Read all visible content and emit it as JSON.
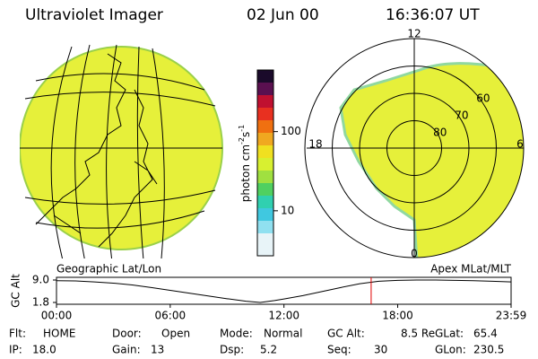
{
  "header": {
    "title": "Ultraviolet Imager",
    "date": "02 Jun 00",
    "time": "16:36:07 UT"
  },
  "colorbar": {
    "label": "photon cm",
    "exp1": "-2",
    "unit2": "s",
    "exp2": "-1",
    "scale": "log",
    "lim": [
      2.7,
      600
    ],
    "ticks": [
      10,
      100
    ]
  },
  "polar": {
    "mlt_labels": [
      "12",
      "18",
      "6",
      "0"
    ],
    "lat_lim": [
      50,
      90
    ],
    "lat_rings": [
      60,
      70,
      80
    ]
  },
  "map_titles": {
    "left": "Geographic Lat/Lon",
    "right": "Apex MLat/MLT"
  },
  "orbit_plot": {
    "ylabel": "GC Alt",
    "ylim": [
      1.8,
      9.0
    ],
    "yticks": [
      {
        "value": 9,
        "label": "9.0"
      },
      1.8
    ],
    "xlim": [
      0,
      23.983
    ],
    "xticks": [
      {
        "value": 0,
        "label": "00:00"
      },
      {
        "value": 6,
        "label": "06:00"
      },
      {
        "value": 12,
        "label": "12:00"
      },
      {
        "value": 18,
        "label": "18:00"
      },
      {
        "value": 23.983,
        "label": "23:59"
      }
    ],
    "x": [
      0,
      1,
      2,
      3,
      4,
      5,
      6,
      7,
      8,
      9,
      10,
      10.75,
      11.5,
      12,
      13,
      14,
      15,
      16,
      17,
      18,
      19,
      20,
      21,
      22,
      23,
      23.983
    ],
    "values": [
      8.8,
      8.7,
      8.4,
      8.0,
      7.4,
      6.6,
      5.7,
      4.8,
      3.9,
      3.0,
      2.2,
      1.8,
      2.4,
      2.9,
      4.0,
      5.3,
      6.6,
      7.8,
      8.6,
      8.9,
      9.0,
      9.0,
      8.9,
      8.8,
      8.6,
      8.4
    ],
    "current_time": 16.6
  },
  "info": [
    [
      {
        "label": "Flt:",
        "value": "HOME"
      },
      {
        "label": "Door:",
        "value": "Open"
      },
      {
        "label": "Mode:",
        "value": "Normal"
      },
      {
        "label": "GC Alt:",
        "value": "8.5 Re"
      },
      {
        "label": "GLat:",
        "value": "65.4"
      }
    ],
    [
      {
        "label": "IP:",
        "value": "18.0"
      },
      {
        "label": "Gain:",
        "value": "13"
      },
      {
        "label": "Dsp:",
        "value": "5.2"
      },
      {
        "label": "Seq:",
        "value": "30"
      },
      {
        "label": "GLon:",
        "value": "230.5"
      }
    ]
  ]
}
